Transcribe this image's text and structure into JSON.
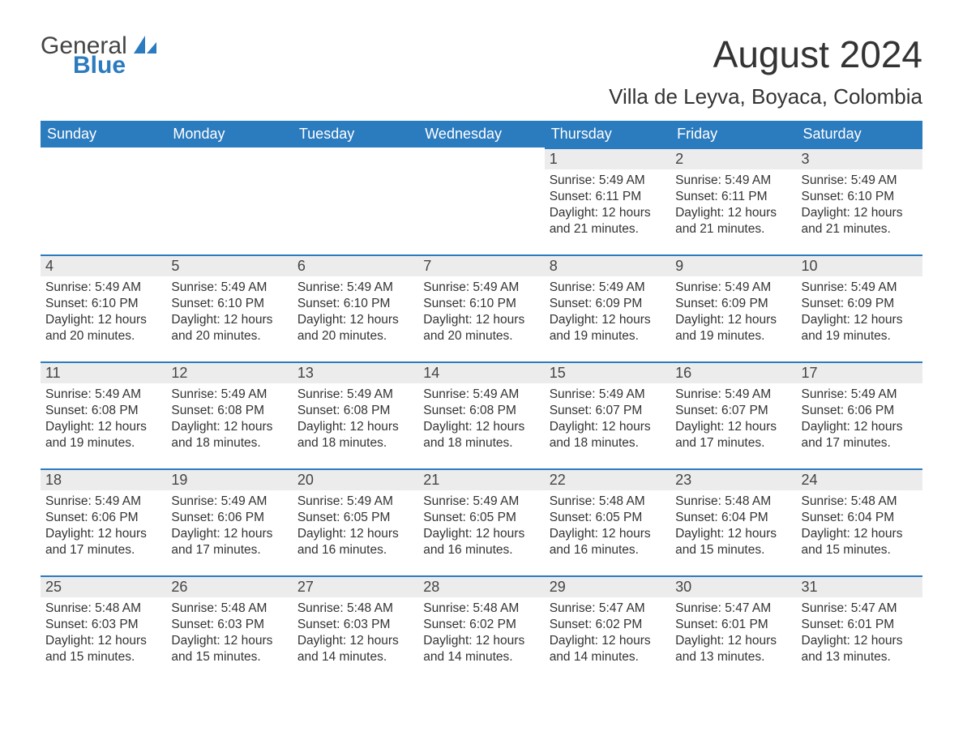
{
  "brand": {
    "word1": "General",
    "word2": "Blue"
  },
  "colors": {
    "header_bg": "#2b7bbf",
    "header_text": "#ffffff",
    "daynum_bg": "#ececec",
    "daynum_border": "#2b7bbf",
    "body_text": "#333333",
    "brand_gray": "#444444",
    "brand_blue": "#2b7bbf",
    "page_bg": "#ffffff"
  },
  "typography": {
    "month_title_pt": 46,
    "location_pt": 26,
    "weekday_header_pt": 18,
    "daynum_pt": 18,
    "body_pt": 15.5
  },
  "title": "August 2024",
  "location": "Villa de Leyva, Boyaca, Colombia",
  "weekdays": [
    "Sunday",
    "Monday",
    "Tuesday",
    "Wednesday",
    "Thursday",
    "Friday",
    "Saturday"
  ],
  "weeks": [
    [
      null,
      null,
      null,
      null,
      {
        "n": "1",
        "sr": "5:49 AM",
        "ss": "6:11 PM",
        "dl": "12 hours and 21 minutes."
      },
      {
        "n": "2",
        "sr": "5:49 AM",
        "ss": "6:11 PM",
        "dl": "12 hours and 21 minutes."
      },
      {
        "n": "3",
        "sr": "5:49 AM",
        "ss": "6:10 PM",
        "dl": "12 hours and 21 minutes."
      }
    ],
    [
      {
        "n": "4",
        "sr": "5:49 AM",
        "ss": "6:10 PM",
        "dl": "12 hours and 20 minutes."
      },
      {
        "n": "5",
        "sr": "5:49 AM",
        "ss": "6:10 PM",
        "dl": "12 hours and 20 minutes."
      },
      {
        "n": "6",
        "sr": "5:49 AM",
        "ss": "6:10 PM",
        "dl": "12 hours and 20 minutes."
      },
      {
        "n": "7",
        "sr": "5:49 AM",
        "ss": "6:10 PM",
        "dl": "12 hours and 20 minutes."
      },
      {
        "n": "8",
        "sr": "5:49 AM",
        "ss": "6:09 PM",
        "dl": "12 hours and 19 minutes."
      },
      {
        "n": "9",
        "sr": "5:49 AM",
        "ss": "6:09 PM",
        "dl": "12 hours and 19 minutes."
      },
      {
        "n": "10",
        "sr": "5:49 AM",
        "ss": "6:09 PM",
        "dl": "12 hours and 19 minutes."
      }
    ],
    [
      {
        "n": "11",
        "sr": "5:49 AM",
        "ss": "6:08 PM",
        "dl": "12 hours and 19 minutes."
      },
      {
        "n": "12",
        "sr": "5:49 AM",
        "ss": "6:08 PM",
        "dl": "12 hours and 18 minutes."
      },
      {
        "n": "13",
        "sr": "5:49 AM",
        "ss": "6:08 PM",
        "dl": "12 hours and 18 minutes."
      },
      {
        "n": "14",
        "sr": "5:49 AM",
        "ss": "6:08 PM",
        "dl": "12 hours and 18 minutes."
      },
      {
        "n": "15",
        "sr": "5:49 AM",
        "ss": "6:07 PM",
        "dl": "12 hours and 18 minutes."
      },
      {
        "n": "16",
        "sr": "5:49 AM",
        "ss": "6:07 PM",
        "dl": "12 hours and 17 minutes."
      },
      {
        "n": "17",
        "sr": "5:49 AM",
        "ss": "6:06 PM",
        "dl": "12 hours and 17 minutes."
      }
    ],
    [
      {
        "n": "18",
        "sr": "5:49 AM",
        "ss": "6:06 PM",
        "dl": "12 hours and 17 minutes."
      },
      {
        "n": "19",
        "sr": "5:49 AM",
        "ss": "6:06 PM",
        "dl": "12 hours and 17 minutes."
      },
      {
        "n": "20",
        "sr": "5:49 AM",
        "ss": "6:05 PM",
        "dl": "12 hours and 16 minutes."
      },
      {
        "n": "21",
        "sr": "5:49 AM",
        "ss": "6:05 PM",
        "dl": "12 hours and 16 minutes."
      },
      {
        "n": "22",
        "sr": "5:48 AM",
        "ss": "6:05 PM",
        "dl": "12 hours and 16 minutes."
      },
      {
        "n": "23",
        "sr": "5:48 AM",
        "ss": "6:04 PM",
        "dl": "12 hours and 15 minutes."
      },
      {
        "n": "24",
        "sr": "5:48 AM",
        "ss": "6:04 PM",
        "dl": "12 hours and 15 minutes."
      }
    ],
    [
      {
        "n": "25",
        "sr": "5:48 AM",
        "ss": "6:03 PM",
        "dl": "12 hours and 15 minutes."
      },
      {
        "n": "26",
        "sr": "5:48 AM",
        "ss": "6:03 PM",
        "dl": "12 hours and 15 minutes."
      },
      {
        "n": "27",
        "sr": "5:48 AM",
        "ss": "6:03 PM",
        "dl": "12 hours and 14 minutes."
      },
      {
        "n": "28",
        "sr": "5:48 AM",
        "ss": "6:02 PM",
        "dl": "12 hours and 14 minutes."
      },
      {
        "n": "29",
        "sr": "5:47 AM",
        "ss": "6:02 PM",
        "dl": "12 hours and 14 minutes."
      },
      {
        "n": "30",
        "sr": "5:47 AM",
        "ss": "6:01 PM",
        "dl": "12 hours and 13 minutes."
      },
      {
        "n": "31",
        "sr": "5:47 AM",
        "ss": "6:01 PM",
        "dl": "12 hours and 13 minutes."
      }
    ]
  ],
  "labels": {
    "sunrise_prefix": "Sunrise: ",
    "sunset_prefix": "Sunset: ",
    "daylight_prefix": "Daylight: "
  }
}
